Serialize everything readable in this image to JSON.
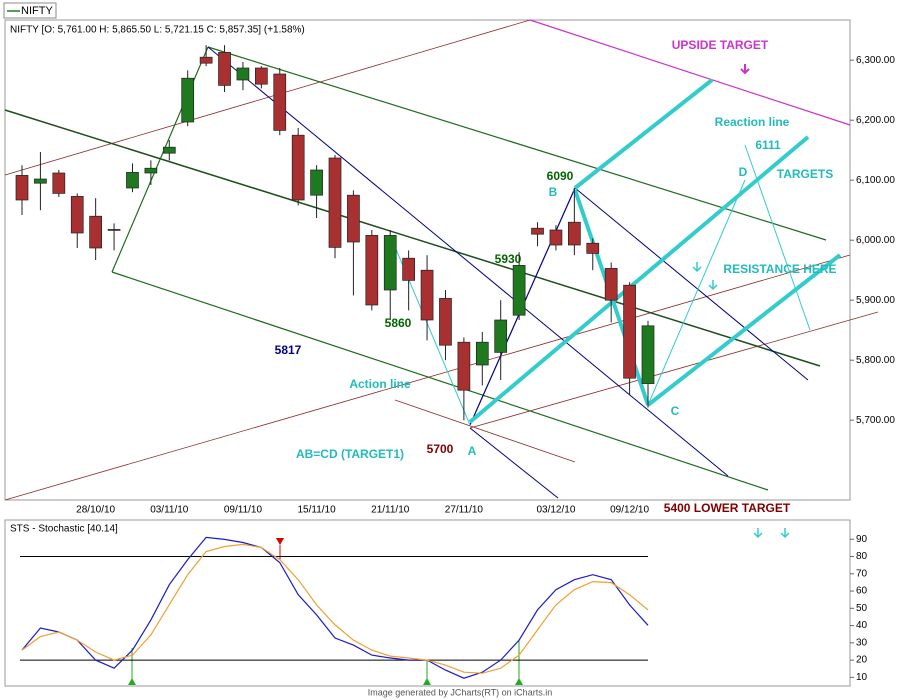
{
  "legend": "NIFTY",
  "footer": "Image generated by  JCharts(RT) on iCharts.in",
  "chart_data": [
    {
      "type": "candlestick",
      "name": "NIFTY",
      "title": "NIFTY [O: 5,761.00  H: 5,865.50  L: 5,721.15  C: 5,857.35] (+1.58%)",
      "categories": [
        null,
        null,
        null,
        null,
        "28/10/10",
        null,
        null,
        null,
        "03/11/10",
        null,
        null,
        null,
        "09/11/10",
        null,
        null,
        null,
        "15/11/10",
        null,
        null,
        null,
        "21/11/10",
        null,
        null,
        null,
        "27/11/10",
        null,
        null,
        null,
        null,
        "03/12/10",
        null,
        null,
        null,
        "09/12/10",
        null
      ],
      "open": [
        6108,
        6095,
        6112,
        6073,
        6040,
        6018,
        6087,
        6112,
        6145,
        6197,
        6305,
        6313,
        6267,
        6287,
        6277,
        6175,
        6075,
        6137,
        6075,
        6008,
        5917,
        5970,
        5950,
        5903,
        5830,
        5792,
        5813,
        5875,
        6020,
        6017,
        6030,
        5995,
        5953,
        5925,
        5761
      ],
      "high": [
        6125,
        6147,
        6117,
        6078,
        6070,
        6028,
        6128,
        6133,
        6167,
        6283,
        6325,
        6325,
        6297,
        6290,
        6287,
        6187,
        6125,
        6142,
        6083,
        6017,
        6017,
        5983,
        5975,
        5917,
        5838,
        5847,
        5900,
        5980,
        6030,
        6025,
        6087,
        6003,
        5963,
        5930,
        5865.5
      ],
      "low": [
        6042,
        6050,
        6072,
        5987,
        5967,
        5983,
        6080,
        6092,
        6133,
        6190,
        6290,
        6247,
        6250,
        6253,
        6175,
        6058,
        6037,
        5970,
        5908,
        5883,
        5867,
        5883,
        5833,
        5800,
        5700,
        5758,
        5767,
        5867,
        5990,
        5983,
        5975,
        5950,
        5863,
        5742,
        5721.15
      ],
      "close": [
        6067,
        6102,
        6078,
        6012,
        5987,
        6017,
        6113,
        6120,
        6155,
        6270,
        6295,
        6258,
        6287,
        6260,
        6183,
        6067,
        6117,
        5988,
        5997,
        5892,
        6008,
        5933,
        5867,
        5825,
        5750,
        5830,
        5867,
        5958,
        6010,
        5992,
        5992,
        5978,
        5900,
        5770,
        5857.35
      ],
      "up_color": "#1f7a1f",
      "down_color": "#a83030",
      "ylim": [
        5567,
        6367
      ],
      "yticks": [
        {
          "value": 5700,
          "label": "5,700.00"
        },
        {
          "value": 5800,
          "label": "5,800.00"
        },
        {
          "value": 5900,
          "label": "5,900.00"
        },
        {
          "value": 6000,
          "label": "6,000.00"
        },
        {
          "value": 6100,
          "label": "6,100.00"
        },
        {
          "value": 6200,
          "label": "6,200.00"
        },
        {
          "value": 6300,
          "label": "6,300.00"
        }
      ],
      "annotations": [
        "UPSIDE TARGET",
        "Reaction line",
        "6111",
        "D",
        "TARGETS",
        "6090",
        "B",
        "RESISTANCE HERE",
        "5930",
        "5860",
        "5817",
        "Action line",
        "AB=CD (TARGET1)",
        "5700",
        "A",
        "C",
        "5400 LOWER TARGET"
      ]
    },
    {
      "type": "line",
      "title": "STS - Stochastic [40.14]",
      "series": [
        {
          "color": "#1a1acc",
          "values": [
            25.8,
            38.6,
            36.3,
            31.6,
            20,
            15.3,
            25.8,
            43.3,
            63.7,
            78.2,
            91.1,
            89.9,
            88.1,
            85.2,
            76.5,
            57.9,
            46.2,
            32.8,
            28.7,
            22.9,
            21.2,
            20,
            20,
            14.2,
            9.5,
            13,
            20,
            31.6,
            49.1,
            60.8,
            66.6,
            69.5,
            66.6,
            52,
            40.14
          ]
        },
        {
          "color": "#f0a030",
          "values": [
            25.8,
            33.6,
            36.3,
            31.6,
            24.7,
            20,
            22.9,
            34.6,
            52.1,
            69.5,
            82.9,
            85.8,
            87,
            85.2,
            78.2,
            66.6,
            52,
            40.4,
            31.6,
            25.8,
            22.3,
            21.2,
            20,
            17.1,
            13,
            12.4,
            15.3,
            22.9,
            37.5,
            52,
            60.8,
            65.5,
            64.9,
            57.9,
            49.1
          ]
        }
      ],
      "hlines": [
        20,
        80
      ],
      "ylim": [
        5,
        100
      ],
      "yticks": [
        10,
        20,
        30,
        40,
        50,
        60,
        70,
        80,
        90
      ]
    }
  ]
}
